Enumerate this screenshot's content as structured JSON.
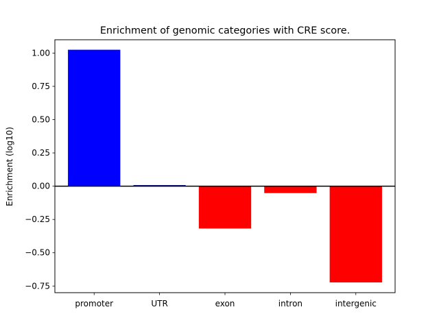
{
  "chart_data": {
    "type": "bar",
    "title": "Enrichment of genomic categories with CRE score.",
    "xlabel": "",
    "ylabel": "Enrichment (log10)",
    "categories": [
      "promoter",
      "UTR",
      "exon",
      "intron",
      "intergenic"
    ],
    "values": [
      1.025,
      0.008,
      -0.318,
      -0.052,
      -0.723
    ],
    "ylim": [
      -0.8,
      1.1
    ],
    "yticks": [
      -0.75,
      -0.5,
      -0.25,
      0.0,
      0.25,
      0.5,
      0.75,
      1.0
    ],
    "ytick_labels": [
      "−0.75",
      "−0.50",
      "−0.25",
      "0.00",
      "0.25",
      "0.50",
      "0.75",
      "1.00"
    ],
    "colors": {
      "positive": "#0000ff",
      "negative": "#ff0000",
      "utr": "#000080",
      "zero_line": "#000000"
    },
    "bar_colors": [
      "#0000ff",
      "#000080",
      "#ff0000",
      "#ff0000",
      "#ff0000"
    ],
    "grid": false,
    "zero_line": true
  }
}
